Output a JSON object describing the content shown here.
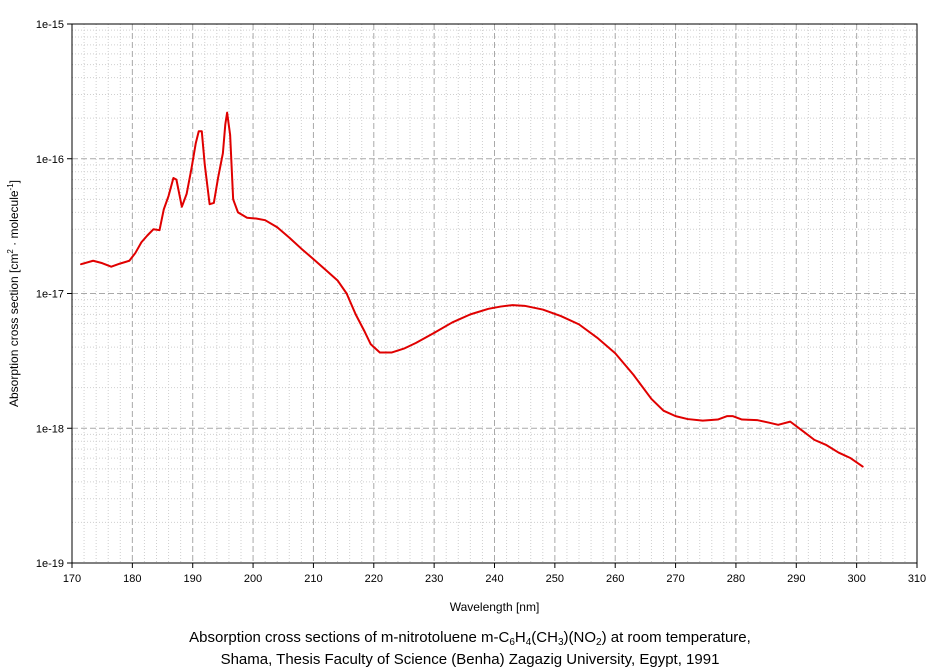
{
  "chart_data": {
    "type": "line",
    "xlabel": "Wavelength [nm]",
    "ylabel_html": "Absorption cross section [cm<tspan font-size=\"8\" dy=\"-5\">2</tspan><tspan dy=\"5\"> · molecule</tspan><tspan font-size=\"8\" dy=\"-5\">-1</tspan><tspan dy=\"5\">]</tspan>",
    "xlim": [
      170,
      310
    ],
    "ylim": [
      1e-19,
      1e-15
    ],
    "yscale": "log",
    "grid": true,
    "x_ticks": [
      170,
      180,
      190,
      200,
      210,
      220,
      230,
      240,
      250,
      260,
      270,
      280,
      290,
      300,
      310
    ],
    "y_ticks": [
      {
        "value": 1e-15,
        "label": "1e-15"
      },
      {
        "value": 1e-16,
        "label": "1e-16"
      },
      {
        "value": 1e-17,
        "label": "1e-17"
      },
      {
        "value": 1e-18,
        "label": "1e-18"
      },
      {
        "value": 1e-19,
        "label": "1e-19"
      }
    ],
    "series": [
      {
        "color": "#e00000",
        "points": [
          [
            171.5,
            1.65e-17
          ],
          [
            173.5,
            1.75e-17
          ],
          [
            175,
            1.68e-17
          ],
          [
            176.5,
            1.58e-17
          ],
          [
            178,
            1.67e-17
          ],
          [
            179.5,
            1.75e-17
          ],
          [
            180.5,
            2e-17
          ],
          [
            181.5,
            2.4e-17
          ],
          [
            182.5,
            2.7e-17
          ],
          [
            183.5,
            3e-17
          ],
          [
            184.5,
            2.95e-17
          ],
          [
            185.2,
            4.2e-17
          ],
          [
            186,
            5.3e-17
          ],
          [
            186.8,
            7.2e-17
          ],
          [
            187.3,
            7e-17
          ],
          [
            188.2,
            4.4e-17
          ],
          [
            189,
            5.5e-17
          ],
          [
            189.8,
            8.5e-17
          ],
          [
            190.5,
            1.3e-16
          ],
          [
            191,
            1.6e-16
          ],
          [
            191.5,
            1.6e-16
          ],
          [
            192,
            9e-17
          ],
          [
            192.8,
            4.6e-17
          ],
          [
            193.5,
            4.7e-17
          ],
          [
            194.2,
            7.2e-17
          ],
          [
            195,
            1.1e-16
          ],
          [
            195.4,
            1.8e-16
          ],
          [
            195.7,
            2.2e-16
          ],
          [
            196.2,
            1.5e-16
          ],
          [
            196.7,
            5e-17
          ],
          [
            197.5,
            4e-17
          ],
          [
            199,
            3.65e-17
          ],
          [
            200.5,
            3.6e-17
          ],
          [
            202,
            3.5e-17
          ],
          [
            204,
            3.1e-17
          ],
          [
            206,
            2.6e-17
          ],
          [
            208,
            2.15e-17
          ],
          [
            210,
            1.8e-17
          ],
          [
            212,
            1.5e-17
          ],
          [
            214,
            1.25e-17
          ],
          [
            215.5,
            1e-17
          ],
          [
            217,
            7e-18
          ],
          [
            218.5,
            5.2e-18
          ],
          [
            219.5,
            4.2e-18
          ],
          [
            221,
            3.65e-18
          ],
          [
            223,
            3.65e-18
          ],
          [
            225,
            3.9e-18
          ],
          [
            227,
            4.3e-18
          ],
          [
            230,
            5.1e-18
          ],
          [
            233,
            6.1e-18
          ],
          [
            236,
            7e-18
          ],
          [
            239,
            7.7e-18
          ],
          [
            241,
            8e-18
          ],
          [
            243,
            8.2e-18
          ],
          [
            245,
            8.1e-18
          ],
          [
            248,
            7.6e-18
          ],
          [
            251,
            6.8e-18
          ],
          [
            254,
            5.9e-18
          ],
          [
            257,
            4.7e-18
          ],
          [
            260,
            3.6e-18
          ],
          [
            263,
            2.5e-18
          ],
          [
            266,
            1.65e-18
          ],
          [
            268,
            1.35e-18
          ],
          [
            270,
            1.23e-18
          ],
          [
            272,
            1.17e-18
          ],
          [
            274.5,
            1.14e-18
          ],
          [
            277,
            1.16e-18
          ],
          [
            278.5,
            1.23e-18
          ],
          [
            279.5,
            1.23e-18
          ],
          [
            281,
            1.16e-18
          ],
          [
            283.5,
            1.15e-18
          ],
          [
            285.5,
            1.1e-18
          ],
          [
            287,
            1.06e-18
          ],
          [
            289,
            1.12e-18
          ],
          [
            291,
            9.6e-19
          ],
          [
            293,
            8.2e-19
          ],
          [
            295,
            7.5e-19
          ],
          [
            297,
            6.6e-19
          ],
          [
            299,
            6e-19
          ],
          [
            301,
            5.2e-19
          ]
        ]
      }
    ]
  },
  "caption": {
    "line1_html": "Absorption cross sections of m-nitrotoluene m-C<sub>6</sub>H<sub>4</sub>(CH<sub>3</sub>)(NO<sub>2</sub>) at room temperature,",
    "line2": "Shama, Thesis Faculty of Science (Benha) Zagazig University, Egypt, 1991"
  }
}
